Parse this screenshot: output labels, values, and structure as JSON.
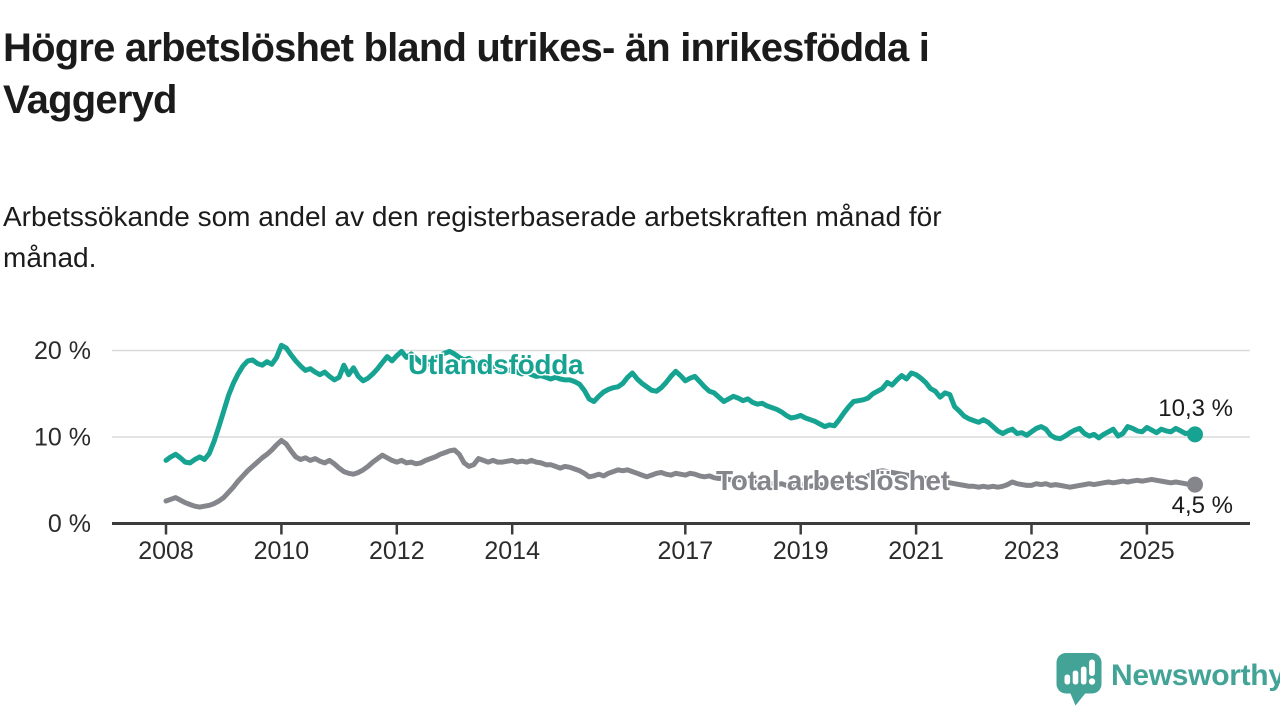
{
  "title_lines": [
    "Högre arbetslöshet bland utrikes- än inrikesfödda i",
    "Vaggeryd"
  ],
  "subtitle_lines": [
    "Arbetssökande som andel av den registerbaserade arbetskraften månad för",
    "månad."
  ],
  "branding": {
    "logo_text": "Newsworthy",
    "logo_icon": "newsworthy-speech-bubble-chart-icon",
    "logo_color": "#43a396"
  },
  "colors": {
    "foreign_born_line": "#17a392",
    "total_line": "#85868b",
    "gridline": "#dadada",
    "axis": "#3c3c3c",
    "text_dark": "#1b1b1b",
    "tick_text": "#2b2b2b"
  },
  "chart_data": {
    "type": "line",
    "title": "Högre arbetslöshet bland utrikes- än inrikesfödda i Vaggeryd",
    "subtitle": "Arbetssökande som andel av den registerbaserade arbetskraften månad för månad.",
    "x_unit": "month",
    "x_start": "2008-01",
    "x_end": "2025-11",
    "grid": "horizontal",
    "legend_position": "inline-labels",
    "y_ticks": [
      {
        "value": 0,
        "label": "0 %"
      },
      {
        "value": 10,
        "label": "10 %"
      },
      {
        "value": 20,
        "label": "20 %"
      }
    ],
    "ylim": [
      0,
      22
    ],
    "x_tick_years": [
      {
        "year": 2008,
        "label": "2008"
      },
      {
        "year": 2010,
        "label": "2010"
      },
      {
        "year": 2012,
        "label": "2012"
      },
      {
        "year": 2014,
        "label": "2014"
      },
      {
        "year": 2017,
        "label": "2017"
      },
      {
        "year": 2019,
        "label": "2019"
      },
      {
        "year": 2021,
        "label": "2021"
      },
      {
        "year": 2023,
        "label": "2023"
      },
      {
        "year": 2025,
        "label": "2025"
      }
    ],
    "series": [
      {
        "id": "utlandsfodda",
        "name": "Utlandsfödda",
        "color": "#17a392",
        "end_value": 10.3,
        "end_label": "10,3 %",
        "values": [
          7.3,
          7.7,
          8.0,
          7.6,
          7.1,
          7.0,
          7.4,
          7.7,
          7.4,
          8.1,
          9.5,
          11.2,
          13.0,
          14.8,
          16.2,
          17.3,
          18.2,
          18.8,
          18.9,
          18.5,
          18.3,
          18.7,
          18.4,
          19.2,
          20.6,
          20.3,
          19.5,
          18.8,
          18.2,
          17.7,
          17.9,
          17.5,
          17.2,
          17.5,
          17.0,
          16.6,
          16.9,
          18.3,
          17.2,
          18.0,
          17.0,
          16.5,
          16.8,
          17.3,
          17.9,
          18.6,
          19.3,
          18.8,
          19.4,
          19.9,
          19.2,
          19.6,
          19.1,
          18.6,
          18.3,
          18.7,
          19.1,
          19.4,
          19.7,
          19.9,
          19.6,
          19.2,
          18.9,
          19.1,
          18.7,
          18.4,
          18.6,
          18.3,
          18.0,
          18.2,
          17.9,
          17.7,
          17.8,
          17.5,
          17.3,
          17.5,
          17.2,
          17.0,
          17.1,
          16.9,
          16.7,
          16.9,
          16.7,
          16.6,
          16.6,
          16.4,
          16.1,
          15.4,
          14.4,
          14.1,
          14.7,
          15.2,
          15.5,
          15.7,
          15.8,
          16.2,
          16.9,
          17.4,
          16.7,
          16.2,
          15.8,
          15.4,
          15.3,
          15.7,
          16.3,
          17.0,
          17.6,
          17.1,
          16.5,
          16.8,
          17.0,
          16.4,
          15.8,
          15.3,
          15.1,
          14.6,
          14.1,
          14.4,
          14.7,
          14.5,
          14.2,
          14.4,
          14.0,
          13.8,
          13.9,
          13.6,
          13.4,
          13.2,
          12.9,
          12.5,
          12.2,
          12.3,
          12.5,
          12.2,
          12.0,
          11.8,
          11.5,
          11.2,
          11.4,
          11.3,
          12.0,
          12.8,
          13.5,
          14.1,
          14.2,
          14.3,
          14.5,
          15.0,
          15.3,
          15.6,
          16.3,
          16.0,
          16.6,
          17.1,
          16.7,
          17.4,
          17.2,
          16.8,
          16.3,
          15.6,
          15.3,
          14.6,
          15.1,
          14.9,
          13.5,
          13.0,
          12.4,
          12.1,
          11.9,
          11.7,
          12.0,
          11.7,
          11.2,
          10.7,
          10.4,
          10.7,
          10.9,
          10.4,
          10.5,
          10.2,
          10.6,
          11.0,
          11.2,
          10.9,
          10.2,
          9.9,
          9.8,
          10.1,
          10.5,
          10.8,
          11.0,
          10.4,
          10.1,
          10.3,
          9.9,
          10.3,
          10.6,
          10.9,
          10.1,
          10.4,
          11.2,
          11.0,
          10.7,
          10.6,
          11.1,
          10.8,
          10.5,
          10.9,
          10.7,
          10.6,
          11.0,
          10.7,
          10.4,
          10.5,
          10.3
        ]
      },
      {
        "id": "total",
        "name": "Total arbetslöshet",
        "color": "#85868b",
        "end_value": 4.5,
        "end_label": "4,5 %",
        "values": [
          2.6,
          2.8,
          3.0,
          2.7,
          2.4,
          2.2,
          2.0,
          1.9,
          2.0,
          2.1,
          2.3,
          2.6,
          3.0,
          3.6,
          4.2,
          4.9,
          5.5,
          6.1,
          6.6,
          7.1,
          7.6,
          8.0,
          8.5,
          9.1,
          9.6,
          9.2,
          8.4,
          7.7,
          7.4,
          7.6,
          7.3,
          7.5,
          7.2,
          7.0,
          7.3,
          6.9,
          6.4,
          6.0,
          5.8,
          5.7,
          5.9,
          6.2,
          6.6,
          7.1,
          7.5,
          7.9,
          7.6,
          7.3,
          7.1,
          7.3,
          7.0,
          7.1,
          6.9,
          7.0,
          7.3,
          7.5,
          7.7,
          8.0,
          8.2,
          8.4,
          8.5,
          8.0,
          7.0,
          6.6,
          6.8,
          7.5,
          7.3,
          7.1,
          7.3,
          7.1,
          7.1,
          7.2,
          7.3,
          7.1,
          7.2,
          7.1,
          7.3,
          7.1,
          7.0,
          6.8,
          6.8,
          6.6,
          6.4,
          6.6,
          6.5,
          6.3,
          6.1,
          5.8,
          5.4,
          5.5,
          5.7,
          5.5,
          5.8,
          6.0,
          6.2,
          6.1,
          6.2,
          6.0,
          5.8,
          5.6,
          5.4,
          5.6,
          5.8,
          5.9,
          5.7,
          5.6,
          5.8,
          5.7,
          5.6,
          5.8,
          5.7,
          5.5,
          5.4,
          5.5,
          5.3,
          5.2,
          5.3,
          5.1,
          5.0,
          5.1,
          5.0,
          4.9,
          5.0,
          4.8,
          4.7,
          4.8,
          4.6,
          4.5,
          4.6,
          4.4,
          4.5,
          4.4,
          4.5,
          4.4,
          4.3,
          4.4,
          4.5,
          4.4,
          4.6,
          4.5,
          4.7,
          4.8,
          4.9,
          5.0,
          5.1,
          5.2,
          5.5,
          5.8,
          6.0,
          6.1,
          6.0,
          5.9,
          5.8,
          5.7,
          5.6,
          5.5,
          5.4,
          5.3,
          5.2,
          5.1,
          5.0,
          4.9,
          4.8,
          4.7,
          4.6,
          4.5,
          4.4,
          4.3,
          4.3,
          4.2,
          4.3,
          4.2,
          4.3,
          4.2,
          4.3,
          4.5,
          4.8,
          4.6,
          4.5,
          4.4,
          4.4,
          4.6,
          4.5,
          4.6,
          4.4,
          4.5,
          4.4,
          4.3,
          4.2,
          4.3,
          4.4,
          4.5,
          4.6,
          4.5,
          4.6,
          4.7,
          4.8,
          4.7,
          4.8,
          4.9,
          4.8,
          4.9,
          5.0,
          4.9,
          5.0,
          5.1,
          5.0,
          4.9,
          4.8,
          4.7,
          4.8,
          4.7,
          4.6,
          4.5,
          4.5
        ]
      }
    ]
  }
}
